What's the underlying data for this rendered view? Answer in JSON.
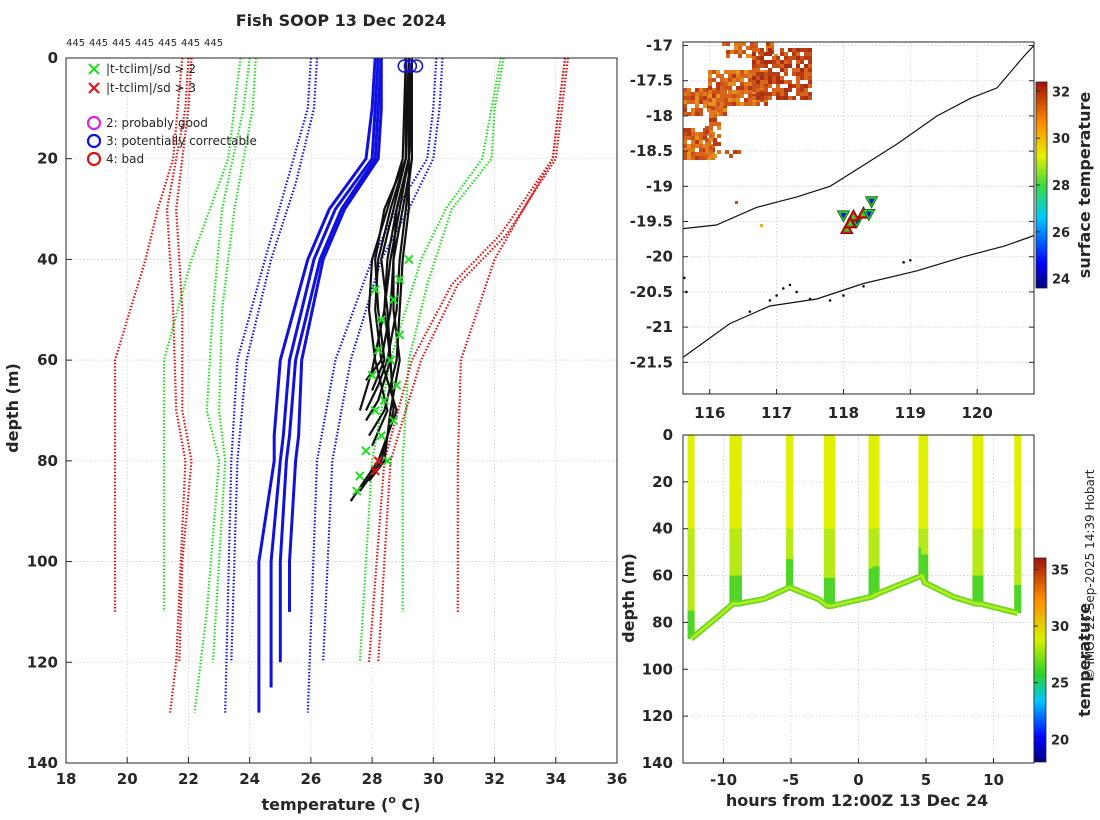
{
  "header": {
    "title": "Fish SOOP 13 Dec 2024",
    "count_labels": [
      "445",
      "445",
      "445",
      "445",
      "445",
      "445",
      "445"
    ]
  },
  "legend": {
    "items": [
      {
        "label": "|t-tclim|/sd > 2",
        "marker": "x",
        "color": "#22dd22"
      },
      {
        "label": "|t-tclim|/sd > 3",
        "marker": "x",
        "color": "#dd1111"
      },
      {
        "label": "2: probably good",
        "marker": "o",
        "color": "#dd22dd"
      },
      {
        "label": "3: potentially correctable",
        "marker": "o",
        "color": "#1111dd"
      },
      {
        "label": "4: bad",
        "marker": "o",
        "color": "#dd1111"
      }
    ]
  },
  "credit": "© IMOS 22-Sep-2025 14:39 Hobart",
  "colorbars": {
    "map": {
      "label": "surface temperature",
      "ticks": [
        "24",
        "26",
        "28",
        "30",
        "32"
      ],
      "range": [
        23.6,
        32.4
      ]
    },
    "section": {
      "label": "temperature",
      "ticks": [
        "20",
        "25",
        "30",
        "35"
      ],
      "range": [
        18,
        36
      ]
    }
  },
  "chart_data": [
    {
      "id": "profiles",
      "type": "line",
      "xlabel": "temperature (",
      "xlabel_sup": "o",
      "xlabel_tail": " C)",
      "ylabel": "depth (m)",
      "xlim": [
        18,
        36
      ],
      "ylim": [
        140,
        0
      ],
      "xticks": [
        "18",
        "20",
        "22",
        "24",
        "26",
        "28",
        "30",
        "32",
        "34",
        "36"
      ],
      "yticks": [
        "0",
        "20",
        "40",
        "60",
        "80",
        "100",
        "120",
        "140"
      ],
      "grid": true,
      "envelopes": [
        {
          "name": "clim-3sd-low-1",
          "color": "#dd1111",
          "depth": [
            0,
            20,
            30,
            40,
            60,
            80,
            110
          ],
          "temp": [
            21.8,
            21.5,
            21.0,
            20.6,
            19.6,
            19.6,
            19.6
          ]
        },
        {
          "name": "clim-3sd-low-2",
          "color": "#dd1111",
          "depth": [
            0,
            10,
            30,
            50,
            70,
            80,
            120,
            130
          ],
          "temp": [
            22.0,
            21.9,
            21.3,
            21.5,
            21.6,
            21.9,
            21.6,
            21.4
          ]
        },
        {
          "name": "clim-3sd-low-3",
          "color": "#dd1111",
          "depth": [
            0,
            10,
            30,
            50,
            70,
            80,
            100,
            120
          ],
          "temp": [
            22.1,
            22.0,
            21.6,
            21.8,
            21.8,
            22.1,
            21.8,
            21.7
          ]
        },
        {
          "name": "clim-2sd-low-1",
          "color": "#22dd22",
          "depth": [
            0,
            20,
            30,
            40,
            60,
            80,
            110
          ],
          "temp": [
            23.7,
            23.3,
            22.7,
            22.1,
            21.2,
            21.2,
            21.2
          ]
        },
        {
          "name": "clim-2sd-low-2",
          "color": "#22dd22",
          "depth": [
            0,
            10,
            30,
            50,
            70,
            80,
            110,
            130
          ],
          "temp": [
            24.0,
            23.8,
            23.1,
            22.8,
            22.6,
            23.0,
            22.6,
            22.2
          ]
        },
        {
          "name": "clim-2sd-low-3",
          "color": "#22dd22",
          "depth": [
            0,
            10,
            30,
            50,
            70,
            80,
            110,
            120
          ],
          "temp": [
            24.2,
            24.1,
            23.5,
            23.1,
            23.0,
            23.2,
            22.9,
            22.8
          ]
        },
        {
          "name": "clim-sd-low-1",
          "color": "#1111dd",
          "depth": [
            0,
            10,
            25,
            40,
            60,
            80,
            130
          ],
          "temp": [
            26.0,
            25.9,
            25.2,
            24.5,
            23.6,
            23.4,
            23.2
          ]
        },
        {
          "name": "clim-sd-low-2",
          "color": "#1111dd",
          "depth": [
            0,
            10,
            25,
            40,
            60,
            80,
            120
          ],
          "temp": [
            26.2,
            26.1,
            25.5,
            24.7,
            23.9,
            23.6,
            23.4
          ]
        },
        {
          "name": "clim-sd-high-1",
          "color": "#1111dd",
          "depth": [
            0,
            10,
            20,
            30,
            40,
            60,
            80,
            130
          ],
          "temp": [
            30.1,
            30.0,
            29.8,
            28.8,
            28.0,
            26.8,
            26.2,
            25.9
          ]
        },
        {
          "name": "clim-sd-high-2",
          "color": "#1111dd",
          "depth": [
            0,
            10,
            20,
            30,
            40,
            60,
            80,
            120
          ],
          "temp": [
            30.3,
            30.2,
            30.0,
            29.2,
            28.3,
            27.3,
            26.7,
            26.4
          ]
        },
        {
          "name": "clim-2sd-high-1",
          "color": "#22dd22",
          "depth": [
            0,
            10,
            20,
            30,
            40,
            60,
            80,
            120
          ],
          "temp": [
            32.2,
            31.9,
            31.6,
            30.4,
            29.6,
            28.6,
            28.0,
            27.6
          ]
        },
        {
          "name": "clim-2sd-high-2",
          "color": "#22dd22",
          "depth": [
            0,
            10,
            20,
            30,
            45,
            60,
            80,
            110
          ],
          "temp": [
            32.3,
            32.0,
            31.9,
            30.6,
            29.8,
            29.2,
            29.0,
            29.0
          ]
        },
        {
          "name": "clim-3sd-high-1",
          "color": "#dd1111",
          "depth": [
            0,
            10,
            20,
            35,
            45,
            60,
            80,
            120
          ],
          "temp": [
            34.3,
            34.1,
            33.9,
            32.2,
            30.6,
            29.3,
            28.4,
            27.9
          ]
        },
        {
          "name": "clim-3sd-high-2",
          "color": "#dd1111",
          "depth": [
            0,
            10,
            20,
            35,
            45,
            60,
            80,
            120
          ],
          "temp": [
            34.4,
            34.2,
            34.0,
            32.4,
            30.8,
            29.6,
            28.6,
            28.2
          ]
        },
        {
          "name": "clim-3sd-high-3",
          "color": "#dd1111",
          "depth": [
            0,
            20,
            40,
            60,
            80,
            110
          ],
          "temp": [
            34.3,
            33.9,
            32.0,
            30.9,
            30.8,
            30.8
          ]
        }
      ],
      "mean_profiles": [
        {
          "name": "mean-1",
          "color": "#1111dd",
          "depth": [
            0,
            10,
            20,
            30,
            40,
            60,
            75,
            80,
            100,
            130
          ],
          "temp": [
            28.1,
            28.0,
            27.8,
            26.6,
            25.9,
            25.0,
            24.8,
            24.8,
            24.3,
            24.3
          ]
        },
        {
          "name": "mean-2",
          "color": "#1111dd",
          "depth": [
            0,
            10,
            20,
            30,
            40,
            60,
            75,
            80,
            100,
            125
          ],
          "temp": [
            28.2,
            28.1,
            28.0,
            26.8,
            26.1,
            25.3,
            25.1,
            25.0,
            24.7,
            24.7
          ]
        },
        {
          "name": "mean-3",
          "color": "#1111dd",
          "depth": [
            0,
            10,
            20,
            30,
            40,
            60,
            75,
            80,
            100,
            120
          ],
          "temp": [
            28.3,
            28.2,
            28.1,
            27.0,
            26.3,
            25.5,
            25.3,
            25.2,
            25.0,
            25.0
          ]
        },
        {
          "name": "mean-4",
          "color": "#1111dd",
          "depth": [
            0,
            10,
            20,
            30,
            40,
            60,
            75,
            80,
            100,
            110
          ],
          "temp": [
            28.3,
            28.3,
            28.2,
            27.1,
            26.4,
            25.7,
            25.6,
            25.5,
            25.3,
            25.3
          ]
        }
      ],
      "observed_profiles": [
        {
          "name": "obs-1",
          "color": "#111111",
          "depth": [
            0,
            20,
            30,
            40,
            50,
            60,
            70,
            80,
            88
          ],
          "temp": [
            29.2,
            29.1,
            28.6,
            28.2,
            28.1,
            28.3,
            28.8,
            28.2,
            27.3
          ]
        },
        {
          "name": "obs-2",
          "color": "#111111",
          "depth": [
            0,
            20,
            30,
            40,
            50,
            60,
            70,
            80,
            86
          ],
          "temp": [
            29.3,
            29.2,
            28.8,
            28.5,
            28.4,
            28.6,
            28.7,
            28.3,
            27.6
          ]
        },
        {
          "name": "obs-3",
          "color": "#111111",
          "depth": [
            0,
            20,
            30,
            40,
            50,
            60,
            70,
            80,
            84
          ],
          "temp": [
            29.2,
            29.3,
            29.0,
            28.7,
            28.7,
            28.9,
            28.6,
            28.4,
            27.9
          ]
        },
        {
          "name": "obs-4",
          "color": "#111111",
          "depth": [
            0,
            20,
            30,
            40,
            50,
            60,
            70,
            77
          ],
          "temp": [
            29.1,
            29.0,
            28.5,
            28.0,
            27.9,
            28.1,
            28.5,
            28.0
          ]
        },
        {
          "name": "obs-5",
          "color": "#111111",
          "depth": [
            0,
            20,
            30,
            40,
            50,
            60,
            70,
            75
          ],
          "temp": [
            29.3,
            29.2,
            29.2,
            29.0,
            28.9,
            28.8,
            28.4,
            27.9
          ]
        },
        {
          "name": "obs-6",
          "color": "#111111",
          "depth": [
            0,
            20,
            30,
            40,
            50,
            60,
            68,
            72
          ],
          "temp": [
            29.2,
            29.1,
            28.7,
            28.3,
            28.5,
            28.6,
            28.2,
            27.8
          ]
        },
        {
          "name": "obs-7",
          "color": "#111111",
          "depth": [
            0,
            20,
            30,
            40,
            50,
            60,
            65,
            70
          ],
          "temp": [
            29.3,
            29.3,
            29.1,
            28.9,
            28.8,
            28.5,
            28.2,
            27.8
          ]
        },
        {
          "name": "obs-8",
          "color": "#111111",
          "depth": [
            0,
            20,
            30,
            40,
            50,
            62,
            70
          ],
          "temp": [
            29.2,
            29.2,
            28.9,
            28.6,
            28.4,
            28.0,
            27.6
          ]
        },
        {
          "name": "obs-9",
          "color": "#111111",
          "depth": [
            0,
            20,
            30,
            40,
            50,
            60,
            66
          ],
          "temp": [
            29.1,
            29.1,
            28.4,
            28.1,
            28.2,
            28.4,
            28.0
          ]
        },
        {
          "name": "obs-10",
          "color": "#111111",
          "depth": [
            0,
            20,
            30,
            40,
            50,
            60,
            64
          ],
          "temp": [
            29.3,
            29.2,
            28.8,
            28.7,
            28.6,
            28.3,
            27.8
          ]
        }
      ],
      "flags_2sd": [
        {
          "temp": 28.1,
          "depth": 46
        },
        {
          "temp": 28.7,
          "depth": 48
        },
        {
          "temp": 28.3,
          "depth": 52
        },
        {
          "temp": 28.9,
          "depth": 55
        },
        {
          "temp": 28.2,
          "depth": 58
        },
        {
          "temp": 28.6,
          "depth": 60
        },
        {
          "temp": 28.0,
          "depth": 63
        },
        {
          "temp": 28.8,
          "depth": 65
        },
        {
          "temp": 28.4,
          "depth": 68
        },
        {
          "temp": 28.1,
          "depth": 70
        },
        {
          "temp": 28.7,
          "depth": 72
        },
        {
          "temp": 28.3,
          "depth": 75
        },
        {
          "temp": 27.8,
          "depth": 78
        },
        {
          "temp": 28.5,
          "depth": 80
        },
        {
          "temp": 27.6,
          "depth": 83
        },
        {
          "temp": 27.5,
          "depth": 86
        },
        {
          "temp": 28.9,
          "depth": 44
        },
        {
          "temp": 29.2,
          "depth": 40
        }
      ],
      "flags_3sd": [
        {
          "temp": 28.2,
          "depth": 80
        },
        {
          "temp": 28.1,
          "depth": 82
        }
      ],
      "qc_circles": [
        {
          "temp": 29.05,
          "depth": 1,
          "color": "#1111dd"
        },
        {
          "temp": 29.25,
          "depth": 1,
          "color": "#1111dd"
        },
        {
          "temp": 29.45,
          "depth": 1,
          "color": "#1111dd"
        }
      ]
    },
    {
      "id": "map",
      "type": "scatter",
      "xticks": [
        "116",
        "117",
        "118",
        "119",
        "120"
      ],
      "yticks": [
        "-17",
        "-17.5",
        "-18",
        "-18.5",
        "-19",
        "-19.5",
        "-20",
        "-20.5",
        "-21",
        "-21.5"
      ],
      "xlim": [
        115.6,
        120.85
      ],
      "ylim": [
        -21.95,
        -16.95
      ],
      "stations": [
        {
          "lon": 118.0,
          "lat": -19.42
        },
        {
          "lon": 118.05,
          "lat": -19.6
        },
        {
          "lon": 118.2,
          "lat": -19.5
        },
        {
          "lon": 118.3,
          "lat": -19.38
        },
        {
          "lon": 118.42,
          "lat": -19.22
        },
        {
          "lon": 118.15,
          "lat": -19.42
        },
        {
          "lon": 118.38,
          "lat": -19.4
        },
        {
          "lon": 118.1,
          "lat": -19.52
        }
      ],
      "coast_200m": {
        "lon": [
          115.6,
          116.3,
          116.9,
          117.6,
          118.3,
          119.1,
          119.8,
          120.4,
          120.85
        ],
        "lat": [
          -21.43,
          -20.95,
          -20.7,
          -20.6,
          -20.38,
          -20.2,
          -20.0,
          -19.85,
          -19.7
        ]
      },
      "shelf_contour_1": {
        "lon": [
          115.6,
          116.1,
          116.7,
          117.3,
          117.8,
          118.3,
          118.8,
          119.4,
          119.9,
          120.3,
          120.7,
          120.85
        ],
        "lat": [
          -19.6,
          -19.55,
          -19.3,
          -19.15,
          -19.0,
          -18.7,
          -18.4,
          -18.0,
          -17.75,
          -17.6,
          -17.15,
          -17.0
        ]
      },
      "shelf_contour_2": {
        "lon": [
          118.8,
          119.4,
          120.0,
          120.5,
          120.85
        ],
        "lat": [
          -20.5,
          -20.3,
          -20.1,
          -19.85,
          -19.6
        ]
      }
    },
    {
      "id": "section",
      "type": "heatmap",
      "xlabel": "hours from 12:00Z 13 Dec 24",
      "ylabel": "depth (m)",
      "xlim": [
        -13,
        13
      ],
      "ylim": [
        140,
        0
      ],
      "xticks": [
        "-10",
        "-5",
        "0",
        "5",
        "10"
      ],
      "yticks": [
        "0",
        "20",
        "40",
        "60",
        "80",
        "100",
        "120",
        "140"
      ],
      "casts": [
        -12.4,
        -9.3,
        -8.9,
        -5.1,
        -2.3,
        -2.0,
        1.0,
        1.3,
        4.7,
        4.9,
        8.7,
        9.0,
        11.8
      ],
      "bottom_depth": [
        {
          "h": -12.4,
          "d": 87
        },
        {
          "h": -10.5,
          "d": 78
        },
        {
          "h": -9.3,
          "d": 72
        },
        {
          "h": -8.9,
          "d": 72
        },
        {
          "h": -7,
          "d": 70
        },
        {
          "h": -5.1,
          "d": 65
        },
        {
          "h": -3,
          "d": 70
        },
        {
          "h": -2.3,
          "d": 73
        },
        {
          "h": -2.0,
          "d": 73
        },
        {
          "h": -0.5,
          "d": 71
        },
        {
          "h": 1.0,
          "d": 69
        },
        {
          "h": 1.3,
          "d": 68
        },
        {
          "h": 3,
          "d": 64
        },
        {
          "h": 4.7,
          "d": 60
        },
        {
          "h": 4.9,
          "d": 63
        },
        {
          "h": 7,
          "d": 69
        },
        {
          "h": 8.7,
          "d": 72
        },
        {
          "h": 9.0,
          "d": 72
        },
        {
          "h": 11.8,
          "d": 76
        }
      ]
    }
  ]
}
